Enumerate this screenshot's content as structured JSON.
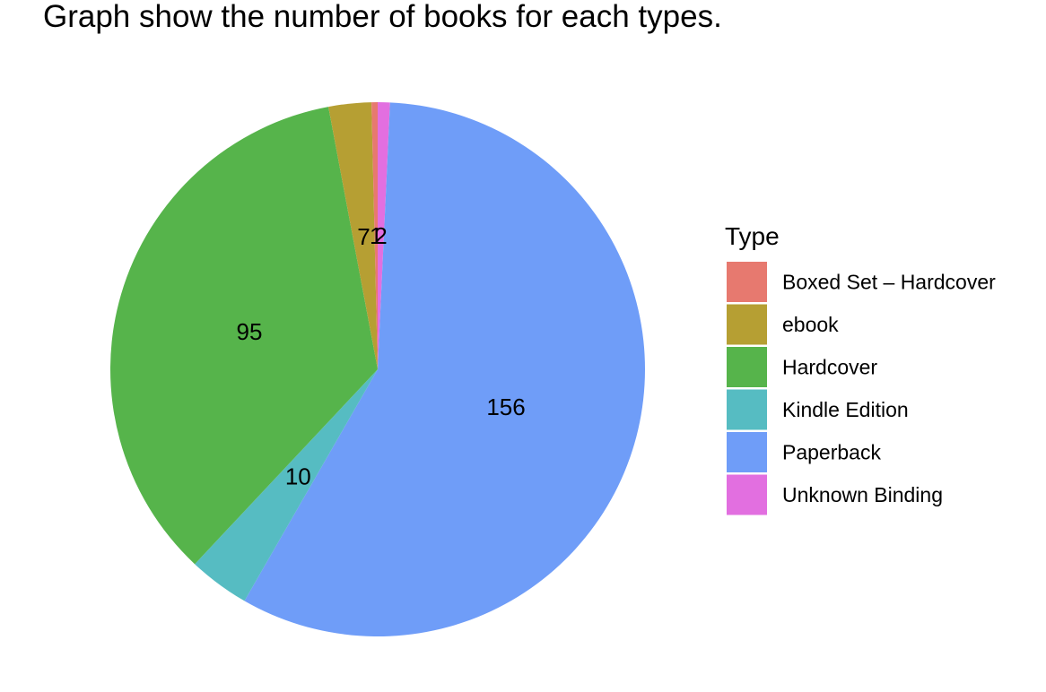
{
  "chart_data": {
    "type": "pie",
    "title": "Graph show the number of books for each types.",
    "legend_title": "Type",
    "legend_position": "right",
    "categories": [
      "Boxed Set – Hardcover",
      "ebook",
      "Hardcover",
      "Kindle Edition",
      "Paperback",
      "Unknown Binding"
    ],
    "values": [
      1,
      7,
      95,
      10,
      156,
      2
    ],
    "labels": [
      "1",
      "7",
      "95",
      "10",
      "156",
      "2"
    ],
    "colors": [
      "#E7796F",
      "#B69F33",
      "#56B44B",
      "#56BCC2",
      "#6F9DF8",
      "#E26FE0"
    ]
  }
}
